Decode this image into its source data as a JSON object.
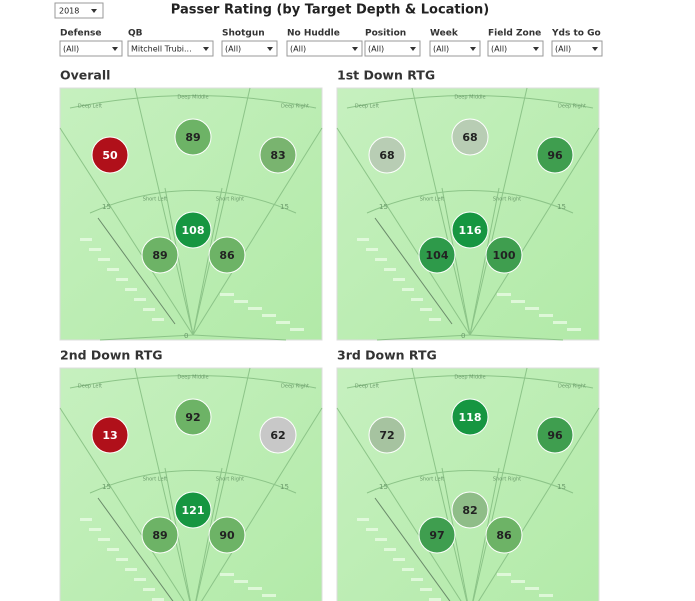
{
  "header": {
    "title": "Passer Rating (by Target Depth & Location)",
    "season": "2018"
  },
  "filters": [
    {
      "label": "Defense",
      "value": "(All)"
    },
    {
      "label": "QB",
      "value": "Mitchell Trubi..."
    },
    {
      "label": "Shotgun",
      "value": "(All)"
    },
    {
      "label": "No Huddle",
      "value": "(All)"
    },
    {
      "label": "Position",
      "value": "(All)"
    },
    {
      "label": "Week",
      "value": "(All)"
    },
    {
      "label": "Field Zone",
      "value": "(All)"
    },
    {
      "label": "Yds to Go",
      "value": "(All)"
    }
  ],
  "field_labels": {
    "deep_left": "Deep Left",
    "deep_middle": "Deep Middle",
    "deep_right": "Deep Right",
    "short_left": "Short Left",
    "short_right": "Short Right",
    "mid_line": "15",
    "los": "0"
  },
  "panels": [
    {
      "title": "Overall",
      "values": [
        50,
        89,
        83,
        108,
        89,
        86
      ],
      "colors": [
        "#b0101a",
        "#6db366",
        "#79b46f",
        "#169641",
        "#6db366",
        "#6db366"
      ]
    },
    {
      "title": "1st Down RTG",
      "values": [
        68,
        68,
        96,
        116,
        104,
        100
      ],
      "colors": [
        "#b8cdb4",
        "#b8cdb4",
        "#3f9e4f",
        "#169641",
        "#2e9a4a",
        "#3f9e4f"
      ]
    },
    {
      "title": "2nd Down RTG",
      "values": [
        13,
        92,
        62,
        121,
        89,
        90
      ],
      "colors": [
        "#b0101a",
        "#6db366",
        "#c8c8c8",
        "#169641",
        "#6db366",
        "#6db366"
      ]
    },
    {
      "title": "3rd Down RTG",
      "values": [
        72,
        118,
        96,
        82,
        97,
        86
      ],
      "colors": [
        "#a6c3a0",
        "#169641",
        "#3f9e4f",
        "#8fbd88",
        "#3f9e4f",
        "#6db366"
      ]
    }
  ]
}
